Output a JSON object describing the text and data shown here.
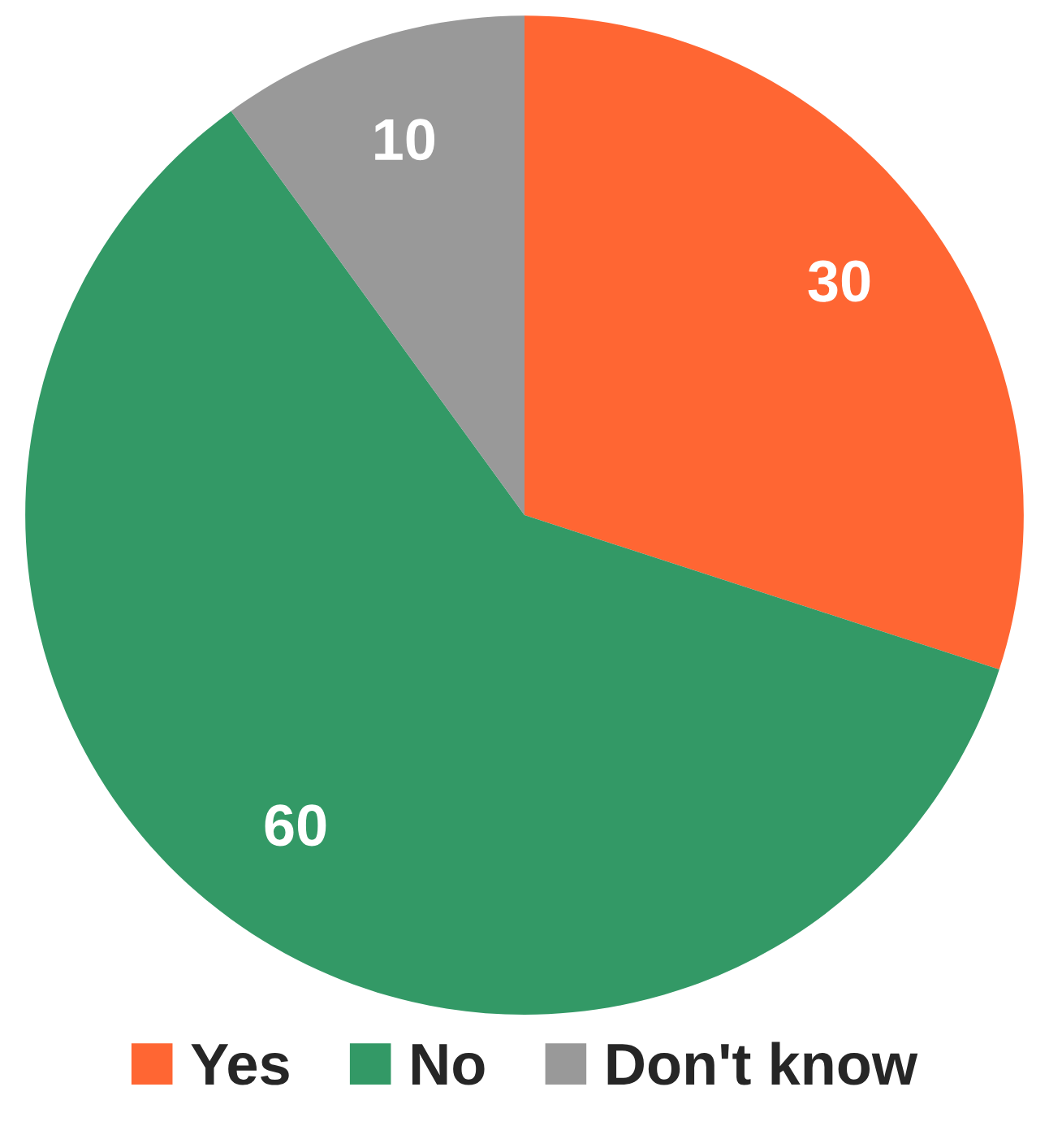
{
  "chart_data": {
    "type": "pie",
    "categories": [
      "Yes",
      "No",
      "Don't know"
    ],
    "values": [
      30,
      60,
      10
    ],
    "colors": [
      "#ff6633",
      "#339966",
      "#999999"
    ],
    "data_labels": true,
    "legend": "bottom"
  }
}
